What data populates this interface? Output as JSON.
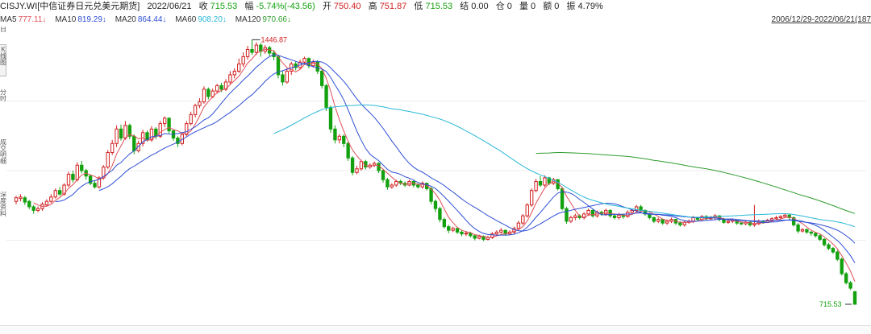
{
  "header": {
    "code": "CISJY.WI[中信证券日元兑美元期货]",
    "date": "2022/06/21",
    "close_label": "收",
    "close": "715.53",
    "change_label": "幅",
    "change": "-5.74%(-43.56)",
    "open_label": "开",
    "open": "750.40",
    "high_label": "高",
    "high": "751.87",
    "low_label": "低",
    "low": "715.53",
    "settle_label": "结",
    "settle": "0.00",
    "position_label": "仓",
    "position": "0",
    "volume_label": "量",
    "volume": "0",
    "amount_label": "额",
    "amount": "0",
    "amplitude_label": "振",
    "amplitude": "4.79%"
  },
  "ma_bar": {
    "items": [
      {
        "label": "MA5",
        "value": "777.11↓",
        "color": "#e0505a"
      },
      {
        "label": "MA10",
        "value": "819.29↓",
        "color": "#2f4fd6"
      },
      {
        "label": "MA20",
        "value": "864.44↓",
        "color": "#2f4fd6"
      },
      {
        "label": "MA60",
        "value": "908.20↓",
        "color": "#2bb8d8"
      },
      {
        "label": "MA120",
        "value": "970.66↓",
        "color": "#2e9e2e"
      }
    ]
  },
  "date_range": "2006/12/29-2022/06/21(187",
  "left_strip": {
    "groups": [
      {
        "text": "日",
        "y": 0
      },
      {
        "text": "K线图",
        "y": 30
      },
      {
        "text": "分时",
        "y": 80
      },
      {
        "text": "成交明细",
        "y": 145
      },
      {
        "text": "深度资料",
        "y": 210
      }
    ]
  },
  "chart_data": {
    "type": "candlestick",
    "title": "",
    "ylim": [
      700,
      1470
    ],
    "grid": true,
    "high_label": "1446.87",
    "last_label": "715.53",
    "up_color": "#d12020",
    "down_color": "#13a10e",
    "candles": [
      [
        1000,
        1010,
        1015,
        992
      ],
      [
        1008,
        1012,
        1020,
        1000
      ],
      [
        1010,
        998,
        1015,
        990
      ],
      [
        1000,
        985,
        1004,
        978
      ],
      [
        985,
        975,
        990,
        966
      ],
      [
        975,
        980,
        986,
        970
      ],
      [
        980,
        992,
        998,
        974
      ],
      [
        990,
        1000,
        1006,
        985
      ],
      [
        1000,
        1012,
        1020,
        995
      ],
      [
        1012,
        1030,
        1036,
        1008
      ],
      [
        1030,
        1020,
        1040,
        1015
      ],
      [
        1020,
        1045,
        1050,
        1016
      ],
      [
        1045,
        1075,
        1082,
        1040
      ],
      [
        1075,
        1060,
        1085,
        1052
      ],
      [
        1060,
        1100,
        1108,
        1055
      ],
      [
        1100,
        1085,
        1112,
        1078
      ],
      [
        1085,
        1070,
        1090,
        1060
      ],
      [
        1070,
        1050,
        1075,
        1045
      ],
      [
        1050,
        1040,
        1058,
        1035
      ],
      [
        1040,
        1065,
        1070,
        1035
      ],
      [
        1065,
        1095,
        1100,
        1060
      ],
      [
        1095,
        1135,
        1142,
        1090
      ],
      [
        1135,
        1160,
        1170,
        1128
      ],
      [
        1160,
        1200,
        1210,
        1150
      ],
      [
        1200,
        1175,
        1212,
        1168
      ],
      [
        1175,
        1210,
        1222,
        1170
      ],
      [
        1210,
        1180,
        1215,
        1172
      ],
      [
        1180,
        1140,
        1185,
        1130
      ],
      [
        1140,
        1160,
        1168,
        1135
      ],
      [
        1160,
        1190,
        1198,
        1152
      ],
      [
        1190,
        1170,
        1196,
        1165
      ],
      [
        1170,
        1200,
        1208,
        1165
      ],
      [
        1200,
        1180,
        1205,
        1172
      ],
      [
        1180,
        1215,
        1222,
        1175
      ],
      [
        1215,
        1230,
        1235,
        1205
      ],
      [
        1230,
        1195,
        1232,
        1188
      ],
      [
        1195,
        1175,
        1200,
        1168
      ],
      [
        1175,
        1160,
        1180,
        1150
      ],
      [
        1160,
        1185,
        1190,
        1155
      ],
      [
        1185,
        1215,
        1222,
        1180
      ],
      [
        1215,
        1240,
        1248,
        1210
      ],
      [
        1240,
        1265,
        1270,
        1232
      ],
      [
        1265,
        1275,
        1285,
        1258
      ],
      [
        1275,
        1310,
        1318,
        1270
      ],
      [
        1310,
        1290,
        1315,
        1282
      ],
      [
        1290,
        1305,
        1312,
        1285
      ],
      [
        1305,
        1320,
        1325,
        1298
      ],
      [
        1320,
        1310,
        1328,
        1302
      ],
      [
        1310,
        1330,
        1338,
        1305
      ],
      [
        1330,
        1350,
        1360,
        1325
      ],
      [
        1350,
        1360,
        1368,
        1340
      ],
      [
        1360,
        1380,
        1395,
        1355
      ],
      [
        1380,
        1400,
        1412,
        1372
      ],
      [
        1400,
        1420,
        1430,
        1392
      ],
      [
        1420,
        1412,
        1446.87,
        1405
      ],
      [
        1412,
        1432,
        1440,
        1405
      ],
      [
        1432,
        1415,
        1438,
        1400
      ],
      [
        1415,
        1425,
        1432,
        1408
      ],
      [
        1425,
        1410,
        1430,
        1400
      ],
      [
        1410,
        1400,
        1418,
        1390
      ],
      [
        1400,
        1350,
        1405,
        1340
      ],
      [
        1350,
        1330,
        1360,
        1320
      ],
      [
        1330,
        1360,
        1368,
        1325
      ],
      [
        1360,
        1380,
        1386,
        1350
      ],
      [
        1380,
        1370,
        1388,
        1362
      ],
      [
        1370,
        1385,
        1392,
        1365
      ],
      [
        1385,
        1395,
        1400,
        1378
      ],
      [
        1395,
        1375,
        1398,
        1368
      ],
      [
        1375,
        1385,
        1392,
        1370
      ],
      [
        1385,
        1360,
        1390,
        1352
      ],
      [
        1360,
        1320,
        1365,
        1312
      ],
      [
        1320,
        1260,
        1325,
        1250
      ],
      [
        1260,
        1200,
        1265,
        1190
      ],
      [
        1200,
        1170,
        1210,
        1160
      ],
      [
        1170,
        1180,
        1186,
        1160
      ],
      [
        1180,
        1160,
        1185,
        1150
      ],
      [
        1160,
        1120,
        1165,
        1112
      ],
      [
        1120,
        1080,
        1125,
        1072
      ],
      [
        1080,
        1090,
        1098,
        1075
      ],
      [
        1090,
        1110,
        1115,
        1085
      ],
      [
        1110,
        1095,
        1115,
        1088
      ],
      [
        1095,
        1100,
        1105,
        1090
      ],
      [
        1100,
        1105,
        1110,
        1095
      ],
      [
        1105,
        1085,
        1108,
        1078
      ],
      [
        1085,
        1060,
        1090,
        1052
      ],
      [
        1060,
        1040,
        1065,
        1032
      ],
      [
        1040,
        1045,
        1050,
        1035
      ],
      [
        1045,
        1055,
        1060,
        1040
      ],
      [
        1055,
        1050,
        1060,
        1045
      ],
      [
        1050,
        1045,
        1055,
        1040
      ],
      [
        1045,
        1055,
        1060,
        1042
      ],
      [
        1055,
        1045,
        1060,
        1038
      ],
      [
        1045,
        1040,
        1050,
        1035
      ],
      [
        1040,
        1050,
        1055,
        1035
      ],
      [
        1050,
        1035,
        1052,
        1030
      ],
      [
        1035,
        1000,
        1040,
        992
      ],
      [
        1000,
        980,
        1005,
        970
      ],
      [
        980,
        950,
        985,
        942
      ],
      [
        950,
        930,
        955,
        925
      ],
      [
        930,
        920,
        935,
        912
      ],
      [
        920,
        925,
        930,
        915
      ],
      [
        925,
        915,
        928,
        910
      ],
      [
        915,
        910,
        920,
        904
      ],
      [
        910,
        912,
        918,
        904
      ],
      [
        912,
        905,
        916,
        900
      ],
      [
        905,
        898,
        908,
        892
      ],
      [
        898,
        903,
        908,
        895
      ],
      [
        903,
        895,
        906,
        890
      ],
      [
        895,
        900,
        905,
        892
      ],
      [
        900,
        910,
        915,
        896
      ],
      [
        910,
        915,
        920,
        905
      ],
      [
        915,
        920,
        926,
        910
      ],
      [
        920,
        910,
        922,
        905
      ],
      [
        910,
        915,
        920,
        906
      ],
      [
        915,
        925,
        930,
        910
      ],
      [
        925,
        940,
        946,
        920
      ],
      [
        940,
        960,
        965,
        935
      ],
      [
        960,
        990,
        995,
        955
      ],
      [
        990,
        1030,
        1036,
        985
      ],
      [
        1030,
        1055,
        1062,
        1025
      ],
      [
        1055,
        1045,
        1070,
        1040
      ],
      [
        1045,
        1065,
        1072,
        1040
      ],
      [
        1065,
        1050,
        1068,
        1045
      ],
      [
        1050,
        1060,
        1065,
        1045
      ],
      [
        1060,
        1035,
        1062,
        1030
      ],
      [
        1035,
        980,
        1040,
        975
      ],
      [
        980,
        945,
        985,
        938
      ],
      [
        945,
        955,
        960,
        940
      ],
      [
        955,
        960,
        966,
        948
      ],
      [
        960,
        955,
        964,
        950
      ],
      [
        955,
        965,
        970,
        950
      ],
      [
        965,
        975,
        980,
        960
      ],
      [
        975,
        960,
        978,
        955
      ],
      [
        960,
        970,
        975,
        955
      ],
      [
        970,
        965,
        974,
        960
      ],
      [
        965,
        975,
        980,
        960
      ],
      [
        975,
        960,
        978,
        955
      ],
      [
        960,
        955,
        965,
        950
      ],
      [
        955,
        962,
        968,
        950
      ],
      [
        962,
        958,
        966,
        952
      ],
      [
        958,
        970,
        975,
        955
      ],
      [
        970,
        975,
        980,
        965
      ],
      [
        975,
        985,
        990,
        970
      ],
      [
        985,
        975,
        990,
        968
      ],
      [
        975,
        965,
        978,
        960
      ],
      [
        965,
        955,
        968,
        950
      ],
      [
        955,
        945,
        958,
        940
      ],
      [
        945,
        950,
        955,
        940
      ],
      [
        950,
        940,
        952,
        935
      ],
      [
        940,
        945,
        950,
        935
      ],
      [
        945,
        950,
        955,
        940
      ],
      [
        950,
        940,
        952,
        935
      ],
      [
        940,
        935,
        945,
        930
      ],
      [
        935,
        942,
        948,
        930
      ],
      [
        942,
        945,
        950,
        938
      ],
      [
        945,
        955,
        960,
        940
      ],
      [
        955,
        950,
        958,
        945
      ],
      [
        950,
        958,
        962,
        945
      ],
      [
        958,
        952,
        962,
        948
      ],
      [
        952,
        955,
        960,
        948
      ],
      [
        955,
        960,
        965,
        950
      ],
      [
        960,
        950,
        962,
        945
      ],
      [
        950,
        942,
        954,
        938
      ],
      [
        942,
        945,
        950,
        938
      ],
      [
        945,
        948,
        952,
        940
      ],
      [
        948,
        940,
        950,
        935
      ],
      [
        940,
        938,
        944,
        934
      ],
      [
        938,
        942,
        948,
        934
      ],
      [
        942,
        935,
        946,
        930
      ],
      [
        935,
        938,
        990,
        930
      ],
      [
        938,
        945,
        950,
        935
      ],
      [
        945,
        942,
        948,
        938
      ],
      [
        942,
        948,
        952,
        940
      ],
      [
        948,
        952,
        956,
        945
      ],
      [
        952,
        955,
        960,
        948
      ],
      [
        955,
        958,
        962,
        950
      ],
      [
        958,
        962,
        966,
        955
      ],
      [
        962,
        955,
        966,
        950
      ],
      [
        955,
        935,
        958,
        930
      ],
      [
        935,
        918,
        940,
        912
      ],
      [
        918,
        922,
        926,
        914
      ],
      [
        922,
        915,
        925,
        910
      ],
      [
        915,
        912,
        918,
        905
      ],
      [
        912,
        905,
        915,
        900
      ],
      [
        905,
        895,
        908,
        890
      ],
      [
        895,
        880,
        898,
        875
      ],
      [
        880,
        870,
        885,
        865
      ],
      [
        870,
        860,
        874,
        855
      ],
      [
        860,
        840,
        865,
        835
      ],
      [
        840,
        800,
        845,
        795
      ],
      [
        800,
        775,
        805,
        770
      ],
      [
        775,
        760,
        780,
        755
      ],
      [
        750.4,
        715.53,
        751.87,
        715.53
      ]
    ]
  }
}
